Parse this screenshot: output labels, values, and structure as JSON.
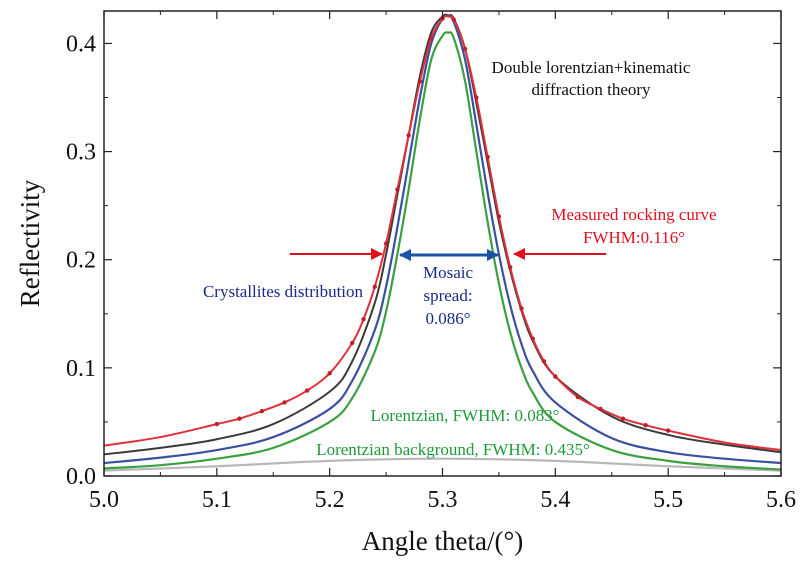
{
  "chart_data": {
    "type": "line",
    "xlabel": "Angle theta/(°)",
    "ylabel": "Reflectivity",
    "xlim": [
      5.0,
      5.6
    ],
    "ylim": [
      0.0,
      0.43
    ],
    "x_ticks": [
      5.0,
      5.1,
      5.2,
      5.3,
      5.4,
      5.5,
      5.6
    ],
    "x_tick_labels": [
      "5.0",
      "5.1",
      "5.2",
      "5.3",
      "5.4",
      "5.5",
      "5.6"
    ],
    "y_ticks": [
      0.0,
      0.1,
      0.2,
      0.3,
      0.4
    ],
    "y_tick_labels": [
      "0.0",
      "0.1",
      "0.2",
      "0.3",
      "0.4"
    ],
    "grid": false,
    "legend": "none",
    "colors": {
      "measured": "#e0303a",
      "fit": "#3a3a3a",
      "mosaic": "#3a50a0",
      "lorentzian": "#3aa040",
      "background": "#b8b8b8",
      "annot_red": "#e0101e",
      "annot_blue": "#1a2a8a",
      "annot_green": "#1e9a3a",
      "annot_black": "#111111"
    },
    "series": [
      {
        "key": "measured",
        "x": [
          5.0,
          5.05,
          5.1,
          5.12,
          5.14,
          5.16,
          5.18,
          5.2,
          5.22,
          5.23,
          5.24,
          5.25,
          5.26,
          5.27,
          5.28,
          5.29,
          5.3,
          5.305,
          5.31,
          5.32,
          5.33,
          5.34,
          5.35,
          5.36,
          5.37,
          5.38,
          5.39,
          5.4,
          5.42,
          5.44,
          5.46,
          5.48,
          5.5,
          5.55,
          5.6
        ],
        "y": [
          0.028,
          0.036,
          0.048,
          0.053,
          0.06,
          0.068,
          0.079,
          0.095,
          0.123,
          0.145,
          0.175,
          0.215,
          0.265,
          0.315,
          0.365,
          0.405,
          0.423,
          0.425,
          0.422,
          0.395,
          0.35,
          0.295,
          0.24,
          0.193,
          0.155,
          0.127,
          0.106,
          0.092,
          0.073,
          0.062,
          0.053,
          0.047,
          0.042,
          0.031,
          0.024
        ],
        "markers_x": [
          5.1,
          5.12,
          5.14,
          5.16,
          5.18,
          5.2,
          5.22,
          5.23,
          5.24,
          5.25,
          5.26,
          5.27,
          5.28,
          5.29,
          5.3,
          5.31,
          5.32,
          5.33,
          5.34,
          5.35,
          5.36,
          5.37,
          5.38,
          5.39,
          5.4,
          5.42,
          5.44,
          5.46,
          5.48,
          5.5
        ]
      },
      {
        "key": "fit",
        "x": [
          5.0,
          5.05,
          5.1,
          5.15,
          5.2,
          5.22,
          5.24,
          5.25,
          5.26,
          5.27,
          5.28,
          5.29,
          5.3,
          5.305,
          5.31,
          5.32,
          5.33,
          5.34,
          5.35,
          5.36,
          5.37,
          5.38,
          5.4,
          5.45,
          5.5,
          5.55,
          5.6
        ],
        "y": [
          0.02,
          0.026,
          0.034,
          0.048,
          0.078,
          0.106,
          0.16,
          0.205,
          0.26,
          0.315,
          0.37,
          0.41,
          0.425,
          0.426,
          0.423,
          0.395,
          0.345,
          0.29,
          0.235,
          0.19,
          0.153,
          0.125,
          0.092,
          0.055,
          0.038,
          0.029,
          0.022
        ]
      },
      {
        "key": "mosaic",
        "x": [
          5.0,
          5.05,
          5.1,
          5.15,
          5.2,
          5.22,
          5.24,
          5.25,
          5.26,
          5.27,
          5.28,
          5.29,
          5.3,
          5.305,
          5.31,
          5.32,
          5.33,
          5.34,
          5.35,
          5.36,
          5.37,
          5.38,
          5.4,
          5.45,
          5.5,
          5.55,
          5.6
        ],
        "y": [
          0.012,
          0.017,
          0.024,
          0.036,
          0.062,
          0.088,
          0.135,
          0.175,
          0.23,
          0.29,
          0.35,
          0.4,
          0.423,
          0.425,
          0.42,
          0.385,
          0.325,
          0.262,
          0.205,
          0.158,
          0.122,
          0.097,
          0.068,
          0.035,
          0.022,
          0.016,
          0.012
        ]
      },
      {
        "key": "lorentzian",
        "x": [
          5.0,
          5.05,
          5.1,
          5.15,
          5.2,
          5.22,
          5.24,
          5.25,
          5.26,
          5.27,
          5.28,
          5.29,
          5.3,
          5.305,
          5.31,
          5.32,
          5.33,
          5.34,
          5.35,
          5.36,
          5.37,
          5.38,
          5.4,
          5.45,
          5.5,
          5.55,
          5.6
        ],
        "y": [
          0.007,
          0.01,
          0.016,
          0.026,
          0.05,
          0.072,
          0.115,
          0.152,
          0.205,
          0.265,
          0.33,
          0.385,
          0.407,
          0.41,
          0.405,
          0.365,
          0.3,
          0.235,
          0.178,
          0.133,
          0.1,
          0.077,
          0.05,
          0.024,
          0.014,
          0.009,
          0.006
        ]
      },
      {
        "key": "background",
        "x": [
          5.0,
          5.1,
          5.2,
          5.3,
          5.4,
          5.5,
          5.6
        ],
        "y": [
          0.005,
          0.009,
          0.014,
          0.016,
          0.014,
          0.009,
          0.005
        ]
      }
    ],
    "annotations": [
      {
        "key": "title_line1",
        "text": "Double lorentzian+kinematic",
        "color_key": "annot_black"
      },
      {
        "key": "title_line2",
        "text": "diffraction theory",
        "color_key": "annot_black"
      },
      {
        "key": "measured_line1",
        "text": "Measured rocking curve",
        "color_key": "annot_red"
      },
      {
        "key": "measured_line2",
        "text": "FWHM:0.116°",
        "color_key": "annot_red"
      },
      {
        "key": "crystallites",
        "text": "Crystallites distribution",
        "color_key": "annot_blue"
      },
      {
        "key": "mosaic_line1",
        "text": "Mosaic",
        "color_key": "annot_blue"
      },
      {
        "key": "mosaic_line2",
        "text": "spread:",
        "color_key": "annot_blue"
      },
      {
        "key": "mosaic_line3",
        "text": "0.086°",
        "color_key": "annot_blue"
      },
      {
        "key": "lorentzian_label",
        "text": "Lorentzian, FWHM: 0.083°",
        "color_key": "annot_green"
      },
      {
        "key": "background_label",
        "text": "Lorentzian background, FWHM: 0.435°",
        "color_key": "annot_green"
      }
    ]
  }
}
